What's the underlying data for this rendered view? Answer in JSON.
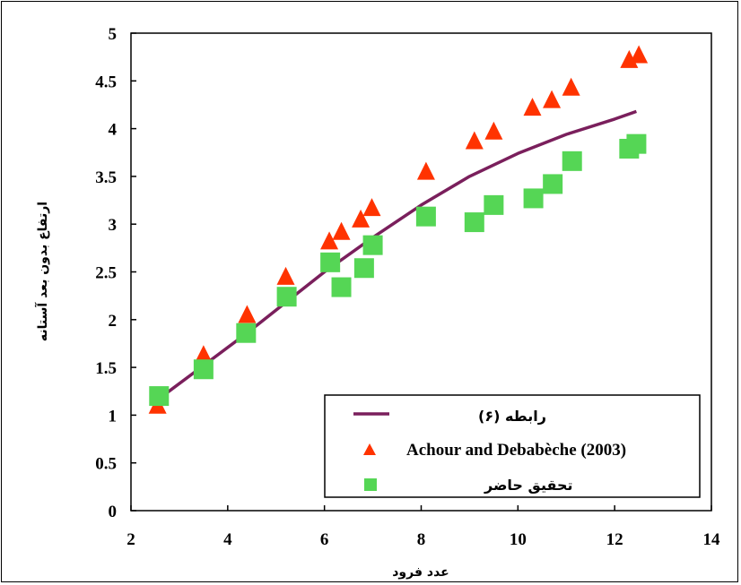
{
  "chart_data": {
    "type": "scatter",
    "xlabel": "عدد فرود",
    "ylabel": "ارتفاع بدون بعد آستانه",
    "xlim": [
      2,
      14
    ],
    "ylim": [
      0,
      5
    ],
    "xticks": [
      2,
      4,
      6,
      8,
      10,
      12,
      14
    ],
    "yticks": [
      0,
      0.5,
      1,
      1.5,
      2,
      2.5,
      3,
      3.5,
      4,
      4.5,
      5
    ],
    "grid": false,
    "legend_position": "bottom-right",
    "series": [
      {
        "name": "رابطه (۶)",
        "kind": "line",
        "color": "#7a1f5c",
        "x": [
          2.6,
          3.5,
          4.4,
          5.2,
          6.0,
          7.0,
          8.0,
          9.0,
          10.0,
          11.0,
          12.0,
          12.45
        ],
        "y": [
          1.18,
          1.52,
          1.86,
          2.18,
          2.5,
          2.86,
          3.2,
          3.5,
          3.74,
          3.94,
          4.1,
          4.18
        ]
      },
      {
        "name": "Achour and Debabèche (2003)",
        "kind": "triangle",
        "color": "#ff3300",
        "x": [
          2.55,
          3.5,
          4.4,
          5.2,
          6.1,
          6.35,
          6.75,
          6.98,
          8.1,
          9.1,
          9.5,
          10.3,
          10.7,
          11.1,
          12.3,
          12.5
        ],
        "y": [
          1.1,
          1.63,
          2.05,
          2.45,
          2.82,
          2.92,
          3.05,
          3.17,
          3.55,
          3.87,
          3.97,
          4.22,
          4.3,
          4.43,
          4.72,
          4.77
        ]
      },
      {
        "name": "تحقیق حاضر",
        "kind": "square",
        "color": "#55d655",
        "x": [
          2.58,
          3.5,
          4.38,
          5.22,
          6.12,
          6.35,
          6.82,
          7.0,
          8.1,
          9.1,
          9.5,
          10.32,
          10.72,
          11.12,
          12.3,
          12.45
        ],
        "y": [
          1.2,
          1.48,
          1.86,
          2.24,
          2.6,
          2.34,
          2.54,
          2.78,
          3.08,
          3.02,
          3.2,
          3.27,
          3.42,
          3.66,
          3.79,
          3.84
        ]
      }
    ]
  }
}
